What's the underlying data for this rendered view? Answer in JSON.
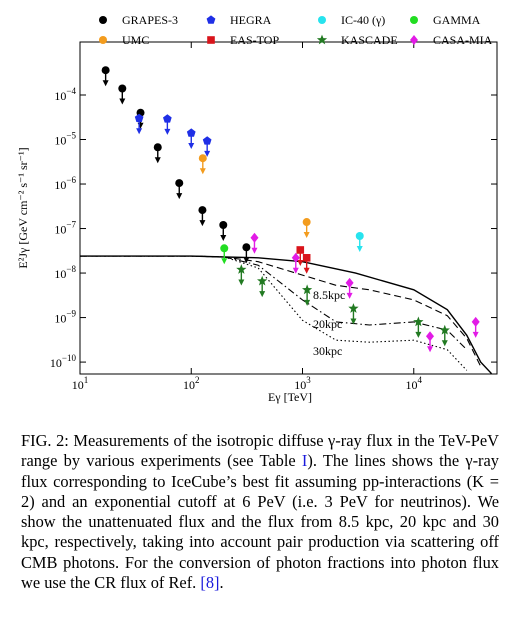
{
  "chart_data": {
    "type": "scatter",
    "x_label": "Eγ [TeV]",
    "y_label": "E²Jγ [GeV cm⁻² s⁻¹ sr⁻¹]",
    "log_x": true,
    "log_y": true,
    "xlim": [
      10,
      56000
    ],
    "ylim": [
      5.4e-11,
      0.00155
    ],
    "xticks": [
      {
        "value": 10,
        "label": "101"
      },
      {
        "value": 100,
        "label": "102"
      },
      {
        "value": 1000,
        "label": "103"
      },
      {
        "value": 10000,
        "label": "104"
      }
    ],
    "yticks": [
      {
        "value": 1e-10,
        "label": "10−10"
      },
      {
        "value": 1e-09,
        "label": "10−9"
      },
      {
        "value": 1e-08,
        "label": "10−8"
      },
      {
        "value": 1e-07,
        "label": "10−7"
      },
      {
        "value": 1e-06,
        "label": "10−6"
      },
      {
        "value": 1e-05,
        "label": "10−5"
      },
      {
        "value": 0.0001,
        "label": "10−4"
      }
    ],
    "series": [
      {
        "name": "GRAPES-3",
        "color": "#000000",
        "marker": "circle",
        "x": [
          17,
          24,
          35,
          50,
          78,
          126,
          194,
          313
        ],
        "values": [
          0.00036,
          0.00014,
          4e-05,
          6.7e-06,
          1.05e-06,
          2.6e-07,
          1.2e-07,
          3.8e-08
        ]
      },
      {
        "name": "UMC",
        "color": "#f39c1e",
        "marker": "circle",
        "x": [
          127,
          1090
        ],
        "values": [
          3.8e-06,
          1.4e-07
        ]
      },
      {
        "name": "HEGRA",
        "color": "#1f2fe6",
        "marker": "pentagon",
        "x": [
          34,
          61,
          100,
          139
        ],
        "values": [
          3e-05,
          2.9e-05,
          1.4e-05,
          9.3e-06
        ]
      },
      {
        "name": "EAS-TOP",
        "color": "#d9141b",
        "marker": "square",
        "x": [
          955,
          1090
        ],
        "values": [
          3.3e-08,
          2.2e-08
        ]
      },
      {
        "name": "IC-40 (γ)",
        "color": "#27e3ee",
        "marker": "circle",
        "x": [
          3270
        ],
        "values": [
          6.8e-08
        ]
      },
      {
        "name": "KASCADE",
        "color": "#227a22",
        "marker": "star",
        "x": [
          282,
          434,
          1100,
          2870,
          11000,
          19000
        ],
        "values": [
          1.2e-08,
          6.6e-09,
          4.2e-09,
          1.6e-09,
          8e-10,
          5.2e-10
        ]
      },
      {
        "name": "GAMMA",
        "color": "#22dd22",
        "marker": "circle",
        "x": [
          198
        ],
        "values": [
          3.6e-08
        ]
      },
      {
        "name": "CASA-MIA",
        "color": "#e21be6",
        "marker": "diamond",
        "x": [
          370,
          870,
          2650,
          14000,
          36000
        ],
        "values": [
          6.2e-08,
          2.2e-08,
          6e-09,
          3.8e-10,
          8e-10
        ]
      }
    ],
    "curves": [
      {
        "dash": "solid",
        "x": [
          10,
          100,
          200,
          400,
          1000,
          3000,
          10000,
          20000,
          30000,
          40000,
          50000
        ],
        "values": [
          2.4e-08,
          2.4e-08,
          2.3e-08,
          2.2e-08,
          1.8e-08,
          1e-08,
          4.2e-09,
          1.5e-09,
          4e-10,
          1e-10,
          5.5e-11
        ]
      },
      {
        "dash": "dashed",
        "label": "8.5kpc",
        "x": [
          10,
          100,
          200,
          400,
          1000,
          2000,
          4000,
          10000,
          20000,
          30000,
          40000
        ],
        "values": [
          2.4e-08,
          2.4e-08,
          2.3e-08,
          1.8e-08,
          9e-09,
          5.3e-09,
          4.2e-09,
          2.5e-09,
          1.1e-09,
          3.4e-10,
          8e-11
        ]
      },
      {
        "dash": "dashdot",
        "label": "20kpc",
        "x": [
          10,
          100,
          200,
          400,
          1000,
          2000,
          4000,
          10000,
          20000,
          30000
        ],
        "values": [
          2.4e-08,
          2.4e-08,
          2.3e-08,
          1.5e-08,
          2.5e-09,
          8e-10,
          6.8e-10,
          8e-10,
          5.2e-10,
          1.9e-10
        ]
      },
      {
        "dash": "dotted",
        "label": "30kpc",
        "x": [
          10,
          100,
          200,
          400,
          1000,
          2000,
          4000,
          10000,
          20000,
          30000
        ],
        "values": [
          2.4e-08,
          2.4e-08,
          2.3e-08,
          1.3e-08,
          8.7e-10,
          3.1e-10,
          2.8e-10,
          3.1e-10,
          1.9e-10,
          6.5e-11
        ]
      }
    ]
  },
  "caption": [
    "FIG. 2: Measurements of the isotropic diffuse γ-ray flux in the TeV-PeV range by various experiments (see Table ",
    "I",
    "). The lines shows the γ-ray flux corresponding to IceCube’s best fit assuming pp-interactions (K = 2) and an exponential cutoff at 6 PeV (i.e. 3 PeV for neutrinos). We show the unattenuated flux and the flux from 8.5 kpc, 20 kpc and 30 kpc, respectively, taking into account pair production via scattering off CMB photons. For the conversion of photon fractions into photon flux we use the CR flux of Ref. ",
    "[8]",
    "."
  ]
}
